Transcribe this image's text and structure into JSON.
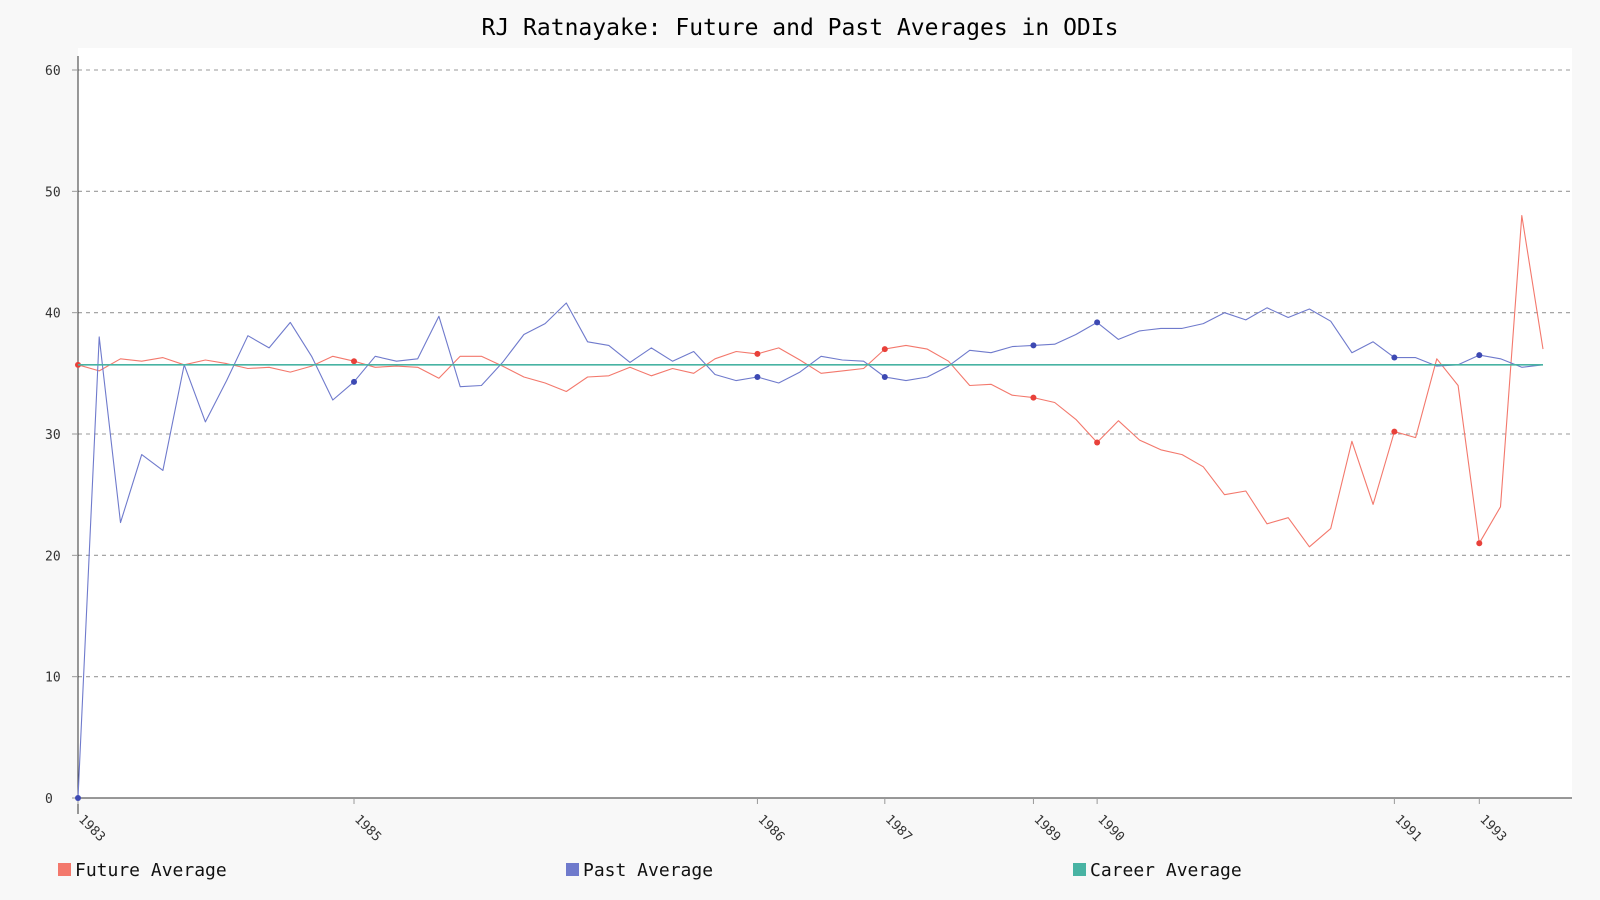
{
  "chart_data": {
    "type": "line",
    "title": "RJ Ratnayake: Future and Past Averages in ODIs",
    "xlabel": "",
    "ylabel": "",
    "ylim": [
      0,
      60
    ],
    "y_ticks": [
      0,
      10,
      20,
      30,
      40,
      50,
      60
    ],
    "grid": true,
    "legend_position": "bottom",
    "x_tick_labels": [
      {
        "index": 0,
        "label": "1983"
      },
      {
        "index": 13,
        "label": "1985"
      },
      {
        "index": 32,
        "label": "1986"
      },
      {
        "index": 38,
        "label": "1987"
      },
      {
        "index": 45,
        "label": "1989"
      },
      {
        "index": 48,
        "label": "1990"
      },
      {
        "index": 62,
        "label": "1991"
      },
      {
        "index": 66,
        "label": "1993"
      }
    ],
    "series": [
      {
        "name": "Future Average",
        "color": "#f3786c",
        "values": [
          35.7,
          35.2,
          36.2,
          36.0,
          36.3,
          35.7,
          36.1,
          35.8,
          35.4,
          35.5,
          35.1,
          35.6,
          36.4,
          36.0,
          35.5,
          35.6,
          35.5,
          34.6,
          36.4,
          36.4,
          35.6,
          34.7,
          34.2,
          33.5,
          34.7,
          34.8,
          35.5,
          34.8,
          35.4,
          35.0,
          36.2,
          36.8,
          36.6,
          37.1,
          36.1,
          35.0,
          35.2,
          35.4,
          37.0,
          37.3,
          37.0,
          36.0,
          34.0,
          34.1,
          33.2,
          33.0,
          32.6,
          31.2,
          29.3,
          31.1,
          29.5,
          28.7,
          28.3,
          27.3,
          25.0,
          25.3,
          22.6,
          23.1,
          20.7,
          22.2,
          29.4,
          24.2,
          30.2,
          29.7,
          36.2,
          34.0,
          21.0,
          24.0,
          48.0,
          37.0
        ],
        "marker_indices": [
          0,
          13,
          32,
          38,
          45,
          48,
          62,
          66
        ]
      },
      {
        "name": "Past Average",
        "color": "#6f7acc",
        "values": [
          0,
          38.0,
          22.7,
          28.3,
          27.0,
          35.7,
          31.0,
          34.4,
          38.1,
          37.1,
          39.2,
          36.4,
          32.8,
          34.3,
          36.4,
          36.0,
          36.2,
          39.7,
          33.9,
          34.0,
          35.9,
          38.2,
          39.1,
          40.8,
          37.6,
          37.3,
          35.9,
          37.1,
          36.0,
          36.8,
          34.9,
          34.4,
          34.7,
          34.2,
          35.1,
          36.4,
          36.1,
          36.0,
          34.7,
          34.4,
          34.7,
          35.6,
          36.9,
          36.7,
          37.2,
          37.3,
          37.4,
          38.2,
          39.2,
          37.8,
          38.5,
          38.7,
          38.7,
          39.1,
          40.0,
          39.4,
          40.4,
          39.6,
          40.3,
          39.3,
          36.7,
          37.6,
          36.3,
          36.3,
          35.6,
          35.7,
          36.5,
          36.2,
          35.5,
          35.7
        ],
        "marker_indices": [
          0,
          13,
          32,
          38,
          45,
          48,
          62,
          66
        ]
      },
      {
        "name": "Career Average",
        "color": "#48b3a3",
        "constant": 35.7
      }
    ]
  }
}
